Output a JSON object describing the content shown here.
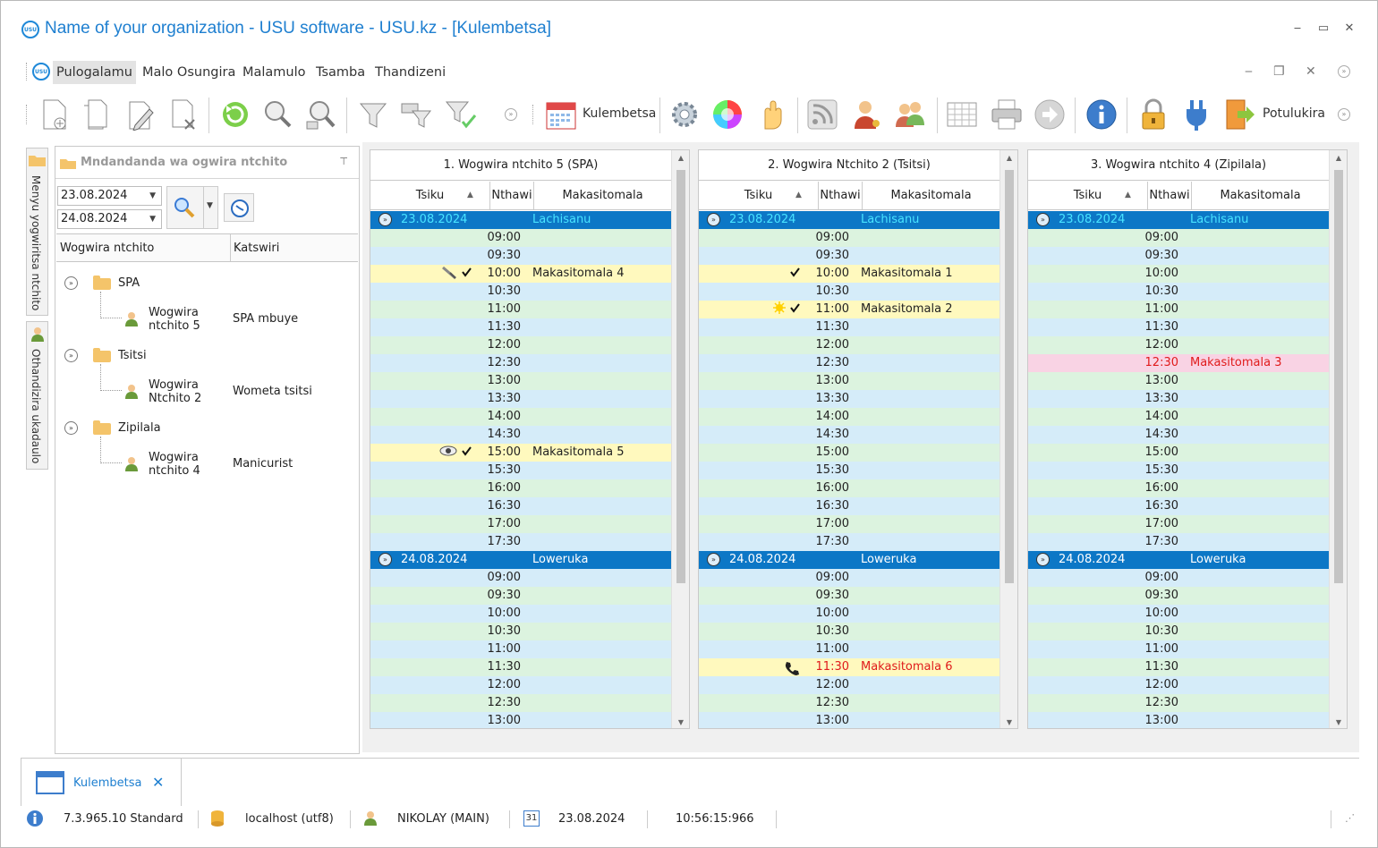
{
  "window": {
    "title": "Name of your organization - USU software - USU.kz - [Kulembetsa]",
    "logo_text": "USU"
  },
  "menu": [
    "Pulogalamu",
    "Malo Osungira",
    "Malamulo",
    "Tsamba",
    "Thandizeni"
  ],
  "toolbar": {
    "calendar_label": "Kulembetsa",
    "exit_label": "Potulukira"
  },
  "side_tabs": [
    "Menyu yogwiritsa ntchito",
    "Othandizira ukadaulo"
  ],
  "sidepanel": {
    "title": "Mndandanda wa ogwira ntchito",
    "date_from": "23.08.2024",
    "date_to": "24.08.2024",
    "columns": [
      "Wogwira ntchito",
      "Katswiri"
    ],
    "groups": [
      {
        "name": "SPA",
        "employee_line1": "Wogwira",
        "employee_line2": "ntchito 5",
        "role": "SPA mbuye"
      },
      {
        "name": "Tsitsi",
        "employee_line1": "Wogwira",
        "employee_line2": "Ntchito 2",
        "role": "Wometa tsitsi"
      },
      {
        "name": "Zipilala",
        "employee_line1": "Wogwira",
        "employee_line2": "ntchito 4",
        "role": "Manicurist"
      }
    ]
  },
  "schedule": {
    "columns": [
      "Tsiku",
      "Nthawi",
      "Makasitomala"
    ],
    "panels": [
      {
        "title": "1. Wogwira ntchito 5 (SPA)"
      },
      {
        "title": "2. Wogwira Ntchito 2 (Tsitsi)"
      },
      {
        "title": "3. Wogwira ntchito 4 (Zipilala)"
      }
    ],
    "days": [
      {
        "date": "23.08.2024",
        "day": "Lachisanu"
      },
      {
        "date": "24.08.2024",
        "day": "Loweruka"
      }
    ],
    "times_day1": [
      "09:00",
      "09:30",
      "10:00",
      "10:30",
      "11:00",
      "11:30",
      "12:00",
      "12:30",
      "13:00",
      "13:30",
      "14:00",
      "14:30",
      "15:00",
      "15:30",
      "16:00",
      "16:30",
      "17:00",
      "17:30"
    ],
    "times_day2": [
      "09:00",
      "09:30",
      "10:00",
      "10:30",
      "11:00",
      "11:30",
      "12:00",
      "12:30",
      "13:00"
    ],
    "appointments": {
      "p0_10:00": "Makasitomala 4",
      "p0_15:00": "Makasitomala 5",
      "p1_10:00": "Makasitomala 1",
      "p1_11:00": "Makasitomala 2",
      "p1_d2_11:30": "Makasitomala 6",
      "p2_12:30": "Makasitomala 3"
    }
  },
  "bottom_tab": {
    "label": "Kulembetsa",
    "close": "✕"
  },
  "status": {
    "version": "7.3.965.10 Standard",
    "server": "localhost (utf8)",
    "user": "NIKOLAY (MAIN)",
    "date": "23.08.2024",
    "time": "10:56:15:966",
    "calendar_day": "31"
  },
  "colors": {
    "accent": "#1e7fd0",
    "date_row": "#0c77c6",
    "row_even": "#d5ecf9",
    "row_odd": "#dcf3df",
    "highlight": "#fff9be",
    "pink": "#f9d3e4"
  }
}
